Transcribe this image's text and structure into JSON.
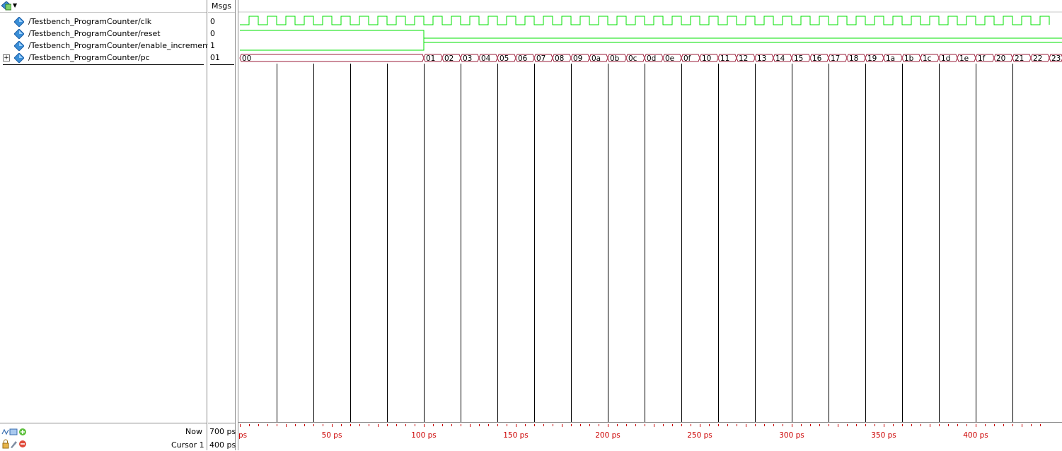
{
  "header": {
    "msgs_label": "Msgs"
  },
  "signals": [
    {
      "name": "/Testbench_ProgramCounter/clk",
      "value": "0",
      "expandable": false
    },
    {
      "name": "/Testbench_ProgramCounter/reset",
      "value": "0",
      "expandable": false
    },
    {
      "name": "/Testbench_ProgramCounter/enable_increment",
      "value": "1",
      "expandable": false
    },
    {
      "name": "/Testbench_ProgramCounter/pc",
      "value": "01",
      "expandable": true
    }
  ],
  "bus_values": [
    "00",
    "01",
    "02",
    "03",
    "04",
    "05",
    "06",
    "07",
    "08",
    "09",
    "0a",
    "0b",
    "0c",
    "0d",
    "0e",
    "0f",
    "10",
    "11",
    "12",
    "13",
    "14",
    "15",
    "16",
    "17",
    "18",
    "19",
    "1a",
    "1b",
    "1c",
    "1d",
    "1e",
    "1f",
    "20",
    "21",
    "22",
    "23"
  ],
  "timeline": {
    "start_label": "ps",
    "tick_labels": [
      "50 ps",
      "100 ps",
      "150 ps",
      "200 ps",
      "250 ps",
      "300 ps",
      "350 ps",
      "400 ps"
    ],
    "tick_values_ps": [
      50,
      100,
      150,
      200,
      250,
      300,
      350,
      400
    ],
    "visible_range_ps": [
      0,
      435
    ],
    "clock_period_ps": 10,
    "reset_release_ps": 100
  },
  "footer": {
    "now_label": "Now",
    "now_value": "700 ps",
    "cursor_label": "Cursor 1",
    "cursor_value": "400 ps"
  },
  "colors": {
    "wave": "#00e000",
    "bus": "#9b1d3a",
    "grid": "#000000",
    "timeline": "#cc0000",
    "icon": "#3a8fd8"
  }
}
